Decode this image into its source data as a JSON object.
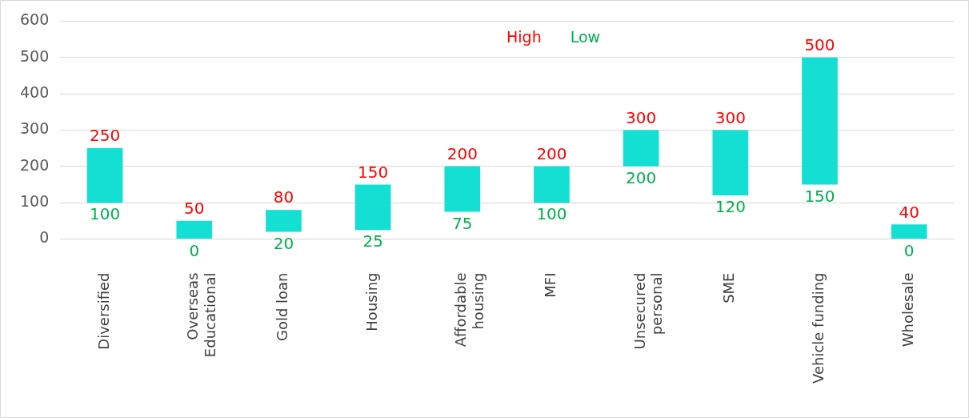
{
  "chart_data": {
    "type": "bar",
    "categories": [
      "Diversified",
      "Overseas\nEducational",
      "Gold loan",
      "Housing",
      "Affordable\nhousing",
      "MFI",
      "Unsecured\npersonal",
      "SME",
      "Vehicle funding",
      "Wholesale"
    ],
    "series": [
      {
        "color": "#13dfd3",
        "base": [
          100,
          0,
          20,
          25,
          75,
          100,
          200,
          120,
          150,
          0
        ],
        "values": [
          150,
          50,
          60,
          125,
          125,
          100,
          100,
          180,
          350,
          40
        ]
      }
    ],
    "annotations": [
      "High",
      "Low",
      {
        "text": "250",
        "x": "Diversified",
        "y": 250
      },
      {
        "text": "100",
        "x": "Diversified",
        "y": 100
      },
      {
        "text": "50",
        "x": "Overseas\nEducational",
        "y": 50
      },
      {
        "text": "0",
        "x": "Overseas\nEducational",
        "y": 0
      },
      {
        "text": "80",
        "x": "Gold loan",
        "y": 80
      },
      {
        "text": "20",
        "x": "Gold loan",
        "y": 20
      },
      {
        "text": "150",
        "x": "Housing",
        "y": 150
      },
      {
        "text": "25",
        "x": "Housing",
        "y": 25
      },
      {
        "text": "200",
        "x": "Affordable\nhousing",
        "y": 200
      },
      {
        "text": "75",
        "x": "Affordable\nhousing",
        "y": 75
      },
      {
        "text": "200",
        "x": "MFI",
        "y": 200
      },
      {
        "text": "100",
        "x": "MFI",
        "y": 100
      },
      {
        "text": "300",
        "x": "Unsecured\npersonal",
        "y": 300
      },
      {
        "text": "200",
        "x": "Unsecured\npersonal",
        "y": 200
      },
      {
        "text": "300",
        "x": "SME",
        "y": 300
      },
      {
        "text": "120",
        "x": "SME",
        "y": 120
      },
      {
        "text": "500",
        "x": "Vehicle funding",
        "y": 500
      },
      {
        "text": "150",
        "x": "Vehicle funding",
        "y": 150
      },
      {
        "text": "40",
        "x": "Wholesale",
        "y": 40
      },
      {
        "text": "0",
        "x": "Wholesale",
        "y": 0
      }
    ],
    "ylim": [
      0,
      600
    ],
    "yticks": [
      0,
      100,
      200,
      300,
      400,
      500,
      600
    ],
    "grid": "y"
  }
}
